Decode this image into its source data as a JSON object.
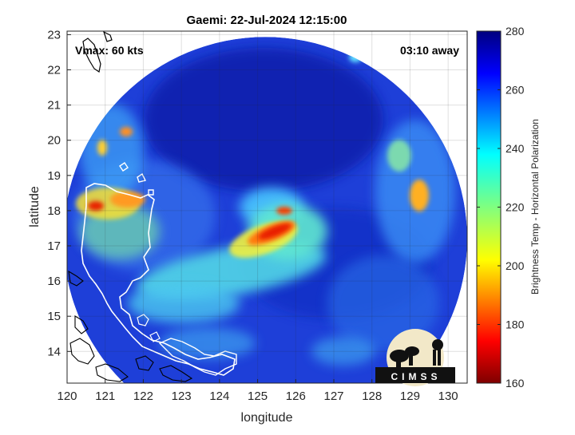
{
  "chart_data": {
    "type": "heatmap",
    "title": "Gaemi: 22-Jul-2024 12:15:00",
    "xlabel": "longitude",
    "ylabel": "latitude",
    "xlim": [
      120,
      130.5
    ],
    "ylim": [
      13.1,
      23.1
    ],
    "xticks": [
      120,
      121,
      122,
      123,
      124,
      125,
      126,
      127,
      128,
      129,
      130
    ],
    "yticks": [
      14,
      15,
      16,
      17,
      18,
      19,
      20,
      21,
      22,
      23
    ],
    "grid": true,
    "annotations": {
      "vmax": "Vmax: 60 kts",
      "away": "03:10 away"
    },
    "colorbar": {
      "label": "Brightness Temp - Horizontal Polarization",
      "min": 160,
      "max": 280,
      "ticks": [
        160,
        180,
        200,
        220,
        240,
        260,
        280
      ],
      "placement": "right"
    },
    "swath": {
      "center_lon": 125.2,
      "center_lat": 17.2,
      "radius_deg": 5.3
    },
    "features": [
      {
        "lon": 125.5,
        "lat": 17.3,
        "value": 175
      },
      {
        "lon": 125.7,
        "lat": 18.0,
        "value": 185
      },
      {
        "lon": 124.8,
        "lat": 16.8,
        "value": 230
      },
      {
        "lon": 124.3,
        "lat": 16.2,
        "value": 235
      },
      {
        "lon": 125.0,
        "lat": 18.5,
        "value": 240
      },
      {
        "lon": 120.8,
        "lat": 18.2,
        "value": 195
      },
      {
        "lon": 121.6,
        "lat": 17.8,
        "value": 215
      },
      {
        "lon": 121.0,
        "lat": 19.8,
        "value": 215
      },
      {
        "lon": 129.3,
        "lat": 18.3,
        "value": 205
      },
      {
        "lon": 129.0,
        "lat": 19.5,
        "value": 235
      },
      {
        "lon": 128.7,
        "lat": 15.8,
        "value": 250
      },
      {
        "lon": 122.2,
        "lat": 16.0,
        "value": 238
      },
      {
        "lon": 122.5,
        "lat": 14.6,
        "value": 240
      },
      {
        "lon": 126.5,
        "lat": 14.5,
        "value": 240
      }
    ]
  },
  "logo": {
    "text": "CIMSS"
  },
  "colors": {
    "land_outline": "#ffffff",
    "coast_outline": "#000000"
  }
}
